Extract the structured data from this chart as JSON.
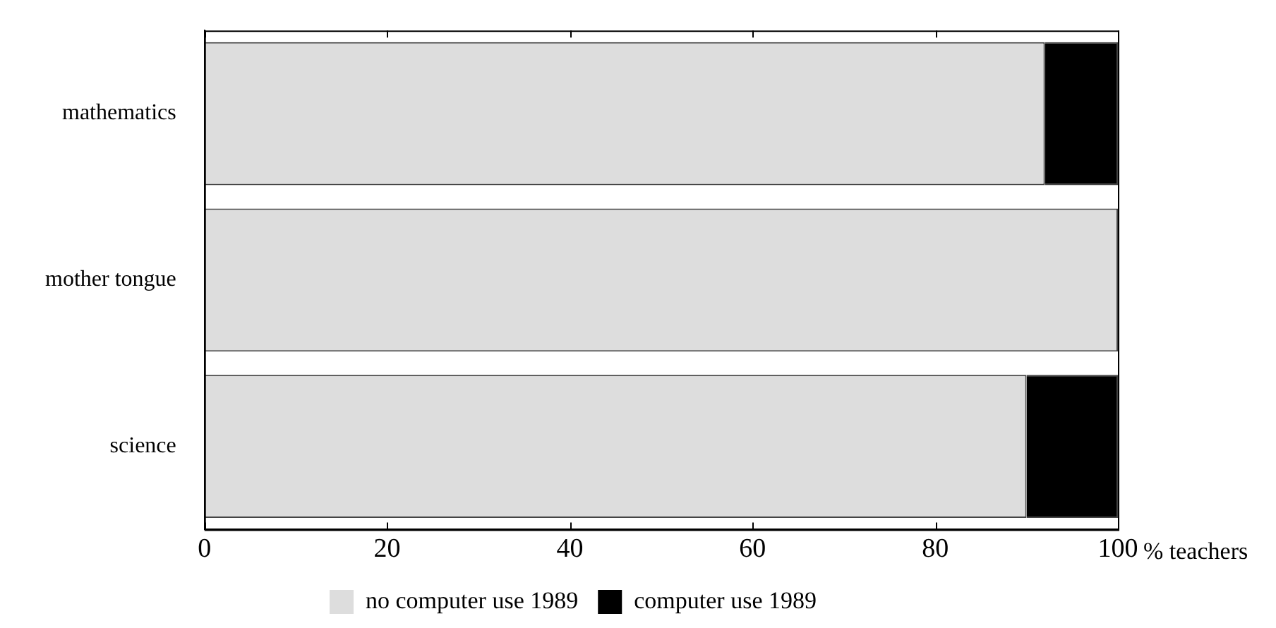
{
  "chart_data": {
    "type": "bar",
    "orientation": "horizontal",
    "stacked": true,
    "categories": [
      "mathematics",
      "mother tongue",
      "science"
    ],
    "series": [
      {
        "name": "no computer use 1989",
        "color": "#dddddd",
        "values": [
          92,
          100,
          90
        ]
      },
      {
        "name": "computer use 1989",
        "color": "#000000",
        "values": [
          8,
          0,
          10
        ]
      }
    ],
    "xlim": [
      0,
      100
    ],
    "xticks": [
      0,
      20,
      40,
      60,
      80,
      100
    ],
    "xlabel": "% teachers",
    "grid": false,
    "legend": "bottom"
  }
}
